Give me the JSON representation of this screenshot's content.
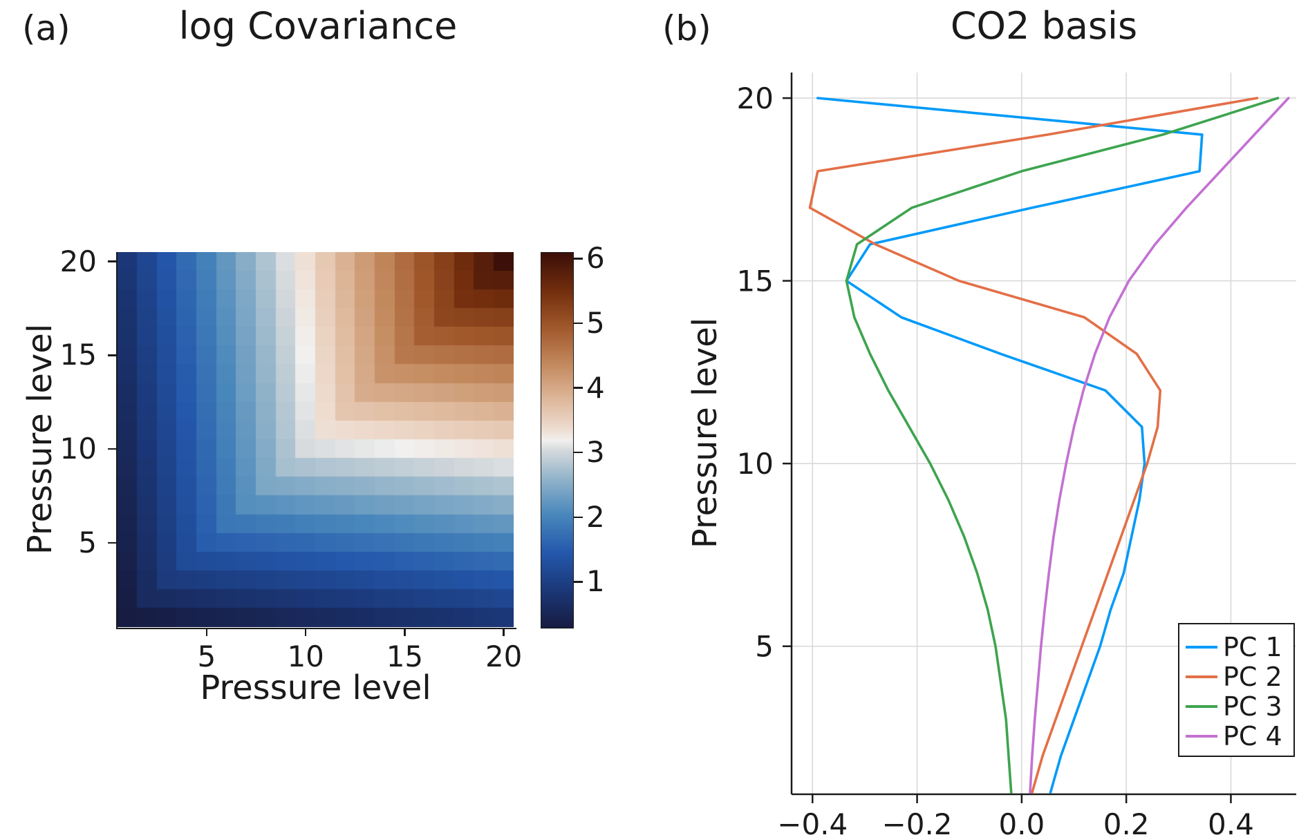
{
  "panel_a": {
    "tag": "(a)",
    "title": "log Covariance",
    "xlabel": "Pressure level",
    "ylabel": "Pressure level",
    "xticks": [
      5,
      10,
      15,
      20
    ],
    "yticks": [
      5,
      10,
      15,
      20
    ],
    "colorbar": {
      "ticks": [
        1,
        2,
        3,
        4,
        5,
        6
      ],
      "vmin": 0.3,
      "vmax": 6.1
    }
  },
  "panel_b": {
    "tag": "(b)",
    "title": "CO2 basis",
    "ylabel": "Pressure level",
    "xtick_labels": [
      "−0.4",
      "−0.2",
      "0.0",
      "0.2",
      "0.4"
    ],
    "yticks": [
      5,
      10,
      15,
      20
    ],
    "legend": [
      "PC 1",
      "PC 2",
      "PC 3",
      "PC 4"
    ]
  },
  "colors": {
    "axis": "#1a1a1a",
    "text": "#1a1a1a",
    "grid": "#d9d9d9",
    "pc1": "#009AF9",
    "pc2": "#E36F47",
    "pc3": "#3DA44E",
    "pc4": "#C371D2"
  },
  "chart_data": [
    {
      "type": "heatmap",
      "panel": "(a)",
      "title": "log Covariance",
      "xlabel": "Pressure level",
      "ylabel": "Pressure level",
      "n_levels": 20,
      "x_range": [
        1,
        20
      ],
      "y_range": [
        1,
        20
      ],
      "value_range": [
        0.3,
        6.1
      ],
      "values_model": "log-covariance matrix over pressure levels i,j=1..20: v(i,j) = sigma_slope*(i+j) - distance_decay*|i-j|; minimum ~0.3 (dark navy) at (1,1) and along bottom/left edges, maximum ~6.1 (dark red-brown) at (20,20) top-right corner, near-white band around v~3 crossing level ~9-10",
      "model_params": {
        "sigma_slope": 0.1525,
        "distance_decay": 0.123
      },
      "colorbar_ticks": [
        1,
        2,
        3,
        4,
        5,
        6
      ],
      "colormap": "diverging navy-blue to white to copper-brown (balance/RdBu style), low=blue high=red",
      "palette_stops": [
        [
          0.0,
          "#171C42"
        ],
        [
          0.1,
          "#1B3879"
        ],
        [
          0.2,
          "#2458AC"
        ],
        [
          0.3,
          "#4887BB"
        ],
        [
          0.4,
          "#94B5CA"
        ],
        [
          0.47,
          "#D3D8DB"
        ],
        [
          0.5,
          "#F1F0EE"
        ],
        [
          0.53,
          "#EEDDD1"
        ],
        [
          0.6,
          "#E0BCA0"
        ],
        [
          0.7,
          "#C48B60"
        ],
        [
          0.8,
          "#A1592C"
        ],
        [
          0.9,
          "#722E0D"
        ],
        [
          1.0,
          "#3C0F09"
        ]
      ]
    },
    {
      "type": "line",
      "panel": "(b)",
      "title": "CO2 basis",
      "ylabel": "Pressure level",
      "orientation": "vertical profiles: PC amplitude on x, pressure level on y",
      "levels": [
        1,
        2,
        3,
        4,
        5,
        6,
        7,
        8,
        9,
        10,
        11,
        12,
        13,
        14,
        15,
        16,
        17,
        18,
        19,
        20
      ],
      "series": [
        {
          "name": "PC 1",
          "color": "#009AF9",
          "values": [
            0.055,
            0.075,
            0.1,
            0.125,
            0.15,
            0.17,
            0.195,
            0.21,
            0.225,
            0.235,
            0.23,
            0.16,
            -0.04,
            -0.23,
            -0.335,
            -0.29,
            0.02,
            0.34,
            0.345,
            -0.39
          ]
        },
        {
          "name": "PC 2",
          "color": "#E36F47",
          "values": [
            0.02,
            0.04,
            0.065,
            0.09,
            0.115,
            0.14,
            0.165,
            0.19,
            0.215,
            0.24,
            0.26,
            0.265,
            0.22,
            0.12,
            -0.12,
            -0.28,
            -0.405,
            -0.39,
            0.05,
            0.45
          ]
        },
        {
          "name": "PC 3",
          "color": "#3DA44E",
          "values": [
            -0.02,
            -0.025,
            -0.03,
            -0.04,
            -0.05,
            -0.065,
            -0.085,
            -0.11,
            -0.14,
            -0.175,
            -0.215,
            -0.255,
            -0.29,
            -0.32,
            -0.335,
            -0.315,
            -0.21,
            0.0,
            0.27,
            0.49
          ]
        },
        {
          "name": "PC 4",
          "color": "#C371D2",
          "values": [
            0.016,
            0.02,
            0.025,
            0.031,
            0.037,
            0.044,
            0.052,
            0.061,
            0.072,
            0.085,
            0.1,
            0.118,
            0.14,
            0.168,
            0.205,
            0.255,
            0.315,
            0.38,
            0.445,
            0.51
          ]
        }
      ],
      "xlim": [
        -0.44,
        0.525
      ],
      "ylim": [
        0.95,
        20.7
      ],
      "xticks": [
        -0.4,
        -0.2,
        0.0,
        0.2,
        0.4
      ],
      "yticks": [
        5,
        10,
        15,
        20
      ],
      "grid": true,
      "legend_position": "bottom-right"
    }
  ]
}
